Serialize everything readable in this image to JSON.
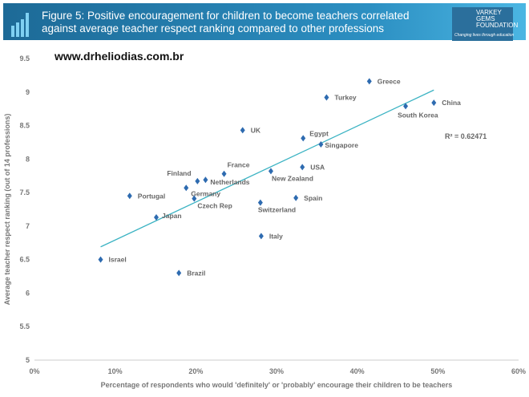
{
  "header": {
    "title": "Figure 5: Positive encouragement for children to become teachers correlated against average teacher respect ranking compared to other professions",
    "logo_text": [
      "VARKEY",
      "GEMS",
      "FOUNDATION"
    ],
    "logo_tagline": "Changing lives through education"
  },
  "watermark": "www.drheliodias.com.br",
  "chart_data": {
    "type": "scatter",
    "title": "Figure 5: Positive encouragement for children to become teachers correlated against average teacher respect ranking compared to other professions",
    "xlabel": "Percentage of respondents who would 'definitely' or 'probably' encourage their children to be teachers",
    "ylabel": "Average teacher respect ranking (out of 14 professions)",
    "xlim": [
      0,
      60
    ],
    "ylim": [
      5,
      9.5
    ],
    "xticks": [
      "0%",
      "10%",
      "20%",
      "30%",
      "40%",
      "50%",
      "60%"
    ],
    "yticks": [
      "5",
      "5.5",
      "6",
      "6.5",
      "7",
      "7.5",
      "8",
      "8.5",
      "9",
      "9.5"
    ],
    "marker_color": "#2e6bb0",
    "trend_color": "#3bb3c3",
    "points": [
      {
        "label": "Greece",
        "x": 41.5,
        "y": 9.16
      },
      {
        "label": "Turkey",
        "x": 36.2,
        "y": 8.92
      },
      {
        "label": "China",
        "x": 49.5,
        "y": 8.84
      },
      {
        "label": "South Korea",
        "x": 46.0,
        "y": 8.79
      },
      {
        "label": "UK",
        "x": 25.8,
        "y": 8.43
      },
      {
        "label": "Egypt",
        "x": 33.3,
        "y": 8.31
      },
      {
        "label": "Singapore",
        "x": 35.5,
        "y": 8.22
      },
      {
        "label": "USA",
        "x": 33.2,
        "y": 7.88
      },
      {
        "label": "New Zealand",
        "x": 29.3,
        "y": 7.82
      },
      {
        "label": "France",
        "x": 23.5,
        "y": 7.78
      },
      {
        "label": "Netherlands",
        "x": 21.2,
        "y": 7.69
      },
      {
        "label": "Finland",
        "x": 20.2,
        "y": 7.67
      },
      {
        "label": "Germany",
        "x": 18.8,
        "y": 7.57
      },
      {
        "label": "Portugal",
        "x": 11.8,
        "y": 7.45
      },
      {
        "label": "Czech Rep",
        "x": 19.8,
        "y": 7.41
      },
      {
        "label": "Spain",
        "x": 32.4,
        "y": 7.42
      },
      {
        "label": "Switzerland",
        "x": 28.0,
        "y": 7.35
      },
      {
        "label": "Japan",
        "x": 15.1,
        "y": 7.13
      },
      {
        "label": "Italy",
        "x": 28.1,
        "y": 6.85
      },
      {
        "label": "Israel",
        "x": 8.2,
        "y": 6.5
      },
      {
        "label": "Brazil",
        "x": 17.9,
        "y": 6.3
      }
    ],
    "trendline": {
      "x": [
        8.2,
        49.5
      ],
      "y": [
        6.69,
        9.03
      ]
    },
    "r_squared": "R² = 0.62471",
    "grid": false
  }
}
